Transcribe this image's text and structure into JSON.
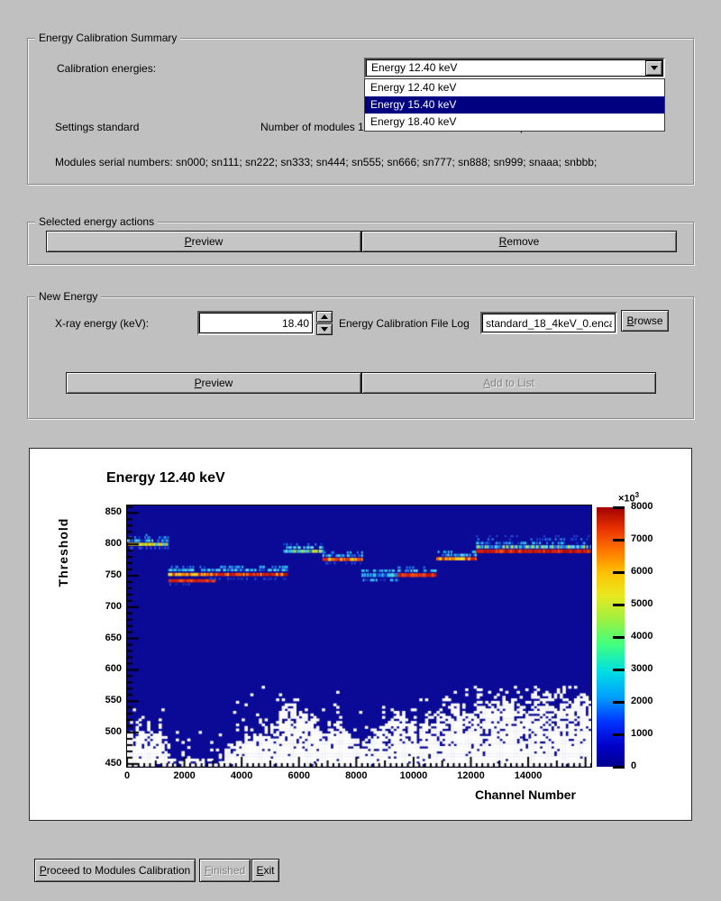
{
  "window": {
    "background": "#c0c0c0"
  },
  "summary_group": {
    "title": "Energy Calibration Summary",
    "calibration_energies_label": "Calibration energies:",
    "combo": {
      "value": "Energy 12.40 keV"
    },
    "dropdown": {
      "items": [
        {
          "label": "Energy 12.40 keV",
          "selected": false
        },
        {
          "label": "Energy 15.40 keV",
          "selected": true
        },
        {
          "label": "Energy 18.40 keV",
          "selected": false
        }
      ],
      "selected_bg": "#000080"
    },
    "settings_label": "Settings standard",
    "modules_label": "Number of modules 12",
    "channels_label": "Channels per module 1280",
    "serials_label": "Modules serial numbers: sn000; sn111; sn222; sn333; sn444; sn555; sn666; sn777; sn888; sn999; snaaa; snbbb;"
  },
  "actions_group": {
    "title": "Selected energy actions",
    "preview_label": "Preview",
    "remove_label": "Remove"
  },
  "new_energy_group": {
    "title": "New Energy",
    "xray_label": "X-ray energy (keV):",
    "xray_value": "18.40",
    "file_log_label": "Energy Calibration File Log",
    "file_value": "standard_18_4keV_0.encal",
    "browse_label": "Browse",
    "preview_label": "Preview",
    "add_to_list_label": "Add to List"
  },
  "footer": {
    "proceed_label": "Proceed to Modules Calibration",
    "finished_label": "Finished",
    "exit_label": "Exit"
  },
  "chart_data": {
    "type": "heatmap",
    "title": "Energy 12.40 keV",
    "xlabel": "Channel Number",
    "ylabel": "Threshold",
    "x_range": [
      0,
      16200
    ],
    "y_range": [
      445.5,
      862
    ],
    "x_ticks": [
      0,
      2000,
      4000,
      6000,
      8000,
      10000,
      12000,
      14000
    ],
    "y_ticks": [
      450,
      500,
      550,
      600,
      650,
      700,
      750,
      800,
      850
    ],
    "background_color": "#0a0a96",
    "empty_color": "#ffffff",
    "colorbar": {
      "min": 0,
      "max": 8000,
      "ticks": [
        0,
        1000,
        2000,
        3000,
        4000,
        5000,
        6000,
        7000,
        8000
      ],
      "exponent_base": "×10",
      "exponent_power": "3",
      "gradient": [
        [
          0,
          "#00008f"
        ],
        [
          0.08,
          "#0000c8"
        ],
        [
          0.17,
          "#0030ff"
        ],
        [
          0.27,
          "#00a0ff"
        ],
        [
          0.37,
          "#00e0e0"
        ],
        [
          0.47,
          "#40ff80"
        ],
        [
          0.57,
          "#a0f040"
        ],
        [
          0.66,
          "#e8e820"
        ],
        [
          0.75,
          "#ffc000"
        ],
        [
          0.84,
          "#ff7000"
        ],
        [
          0.92,
          "#e83000"
        ],
        [
          1,
          "#a00000"
        ]
      ]
    },
    "bands": [
      {
        "name": "module-band-1",
        "ch": [
          0,
          1430
        ],
        "rows": [
          {
            "thr": 800,
            "h": 5,
            "d": 1,
            "ch": [
              30,
              1400
            ],
            "pal": [
              "#f2e72c",
              "#d8e832",
              "#ffd21f",
              "#a8dd2f",
              "#3fd0ea",
              "#ffb300"
            ]
          },
          {
            "thr": 806,
            "h": 4,
            "d": 0.7,
            "pal": [
              "#35c8f0",
              "#2a7fe8",
              "#6fe3f5",
              "#1243d6"
            ]
          },
          {
            "thr": 811,
            "h": 4,
            "d": 0.35,
            "pal": [
              "#2a7fe8",
              "#35c8f0",
              "#1243d6"
            ]
          },
          {
            "thr": 815,
            "h": 3,
            "d": 0.15,
            "pal": [
              "#2a49d8",
              "#35c8f0"
            ]
          },
          {
            "thr": 794,
            "h": 4,
            "d": 0.5,
            "pal": [
              "#1c2fb5",
              "#2a49d8",
              "#3558e8"
            ]
          }
        ]
      },
      {
        "name": "module-band-2",
        "ch": [
          1430,
          2750
        ],
        "rows": [
          {
            "thr": 752,
            "h": 5,
            "d": 1,
            "pal": [
              "#ffd21f",
              "#ff9900",
              "#f2e72c",
              "#ff6a00",
              "#e8392a"
            ]
          },
          {
            "thr": 742,
            "h": 5,
            "d": 1,
            "ch": [
              1440,
              3050
            ],
            "pal": [
              "#e02412",
              "#c21807",
              "#ff5500",
              "#e8392a"
            ]
          },
          {
            "thr": 759,
            "h": 4,
            "d": 0.7,
            "pal": [
              "#35c8f0",
              "#2a7fe8",
              "#6fe3f5"
            ]
          },
          {
            "thr": 764,
            "h": 4,
            "d": 0.35,
            "pal": [
              "#2a7fe8",
              "#35c8f0",
              "#1243d6"
            ]
          },
          {
            "thr": 736,
            "h": 4,
            "d": 0.3,
            "pal": [
              "#1c2fb5",
              "#2a49d8"
            ]
          }
        ]
      },
      {
        "name": "module-band-3",
        "ch": [
          2750,
          5560
        ],
        "rows": [
          {
            "thr": 752,
            "h": 5,
            "d": 1,
            "pal": [
              "#e02412",
              "#c21807",
              "#ff5500",
              "#ffd21f",
              "#ff8800",
              "#d81e0e"
            ]
          },
          {
            "thr": 759,
            "h": 4,
            "d": 0.75,
            "pal": [
              "#35c8f0",
              "#2a7fe8",
              "#6fe3f5",
              "#1243d6"
            ]
          },
          {
            "thr": 764,
            "h": 4,
            "d": 0.35,
            "pal": [
              "#2a7fe8",
              "#35c8f0"
            ]
          },
          {
            "thr": 745,
            "h": 4,
            "d": 0.25,
            "pal": [
              "#1c2fb5",
              "#2a49d8"
            ]
          }
        ]
      },
      {
        "name": "module-band-4",
        "ch": [
          5450,
          6820
        ],
        "rows": [
          {
            "thr": 789,
            "h": 5,
            "d": 1,
            "pal": [
              "#3fd0ea",
              "#35c8f0",
              "#a8dd2f",
              "#f2e72c",
              "#2a7fe8",
              "#6fe3f5"
            ]
          },
          {
            "thr": 795,
            "h": 4,
            "d": 0.6,
            "pal": [
              "#35c8f0",
              "#2a7fe8",
              "#6fe3f5"
            ]
          },
          {
            "thr": 800,
            "h": 4,
            "d": 0.25,
            "pal": [
              "#2a7fe8",
              "#1243d6"
            ]
          }
        ]
      },
      {
        "name": "module-band-5",
        "ch": [
          6820,
          8180
        ],
        "rows": [
          {
            "thr": 776,
            "h": 5,
            "d": 1,
            "pal": [
              "#ff6a00",
              "#e8392a",
              "#e02412",
              "#ffd21f",
              "#ff9900"
            ]
          },
          {
            "thr": 782,
            "h": 4,
            "d": 0.7,
            "pal": [
              "#35c8f0",
              "#2a7fe8",
              "#6fe3f5",
              "#1243d6"
            ]
          },
          {
            "thr": 787,
            "h": 4,
            "d": 0.3,
            "pal": [
              "#2a7fe8",
              "#35c8f0"
            ]
          },
          {
            "thr": 770,
            "h": 4,
            "d": 0.3,
            "pal": [
              "#1c2fb5",
              "#2a49d8"
            ]
          }
        ]
      },
      {
        "name": "module-band-6",
        "ch": [
          8180,
          9440
        ],
        "rows": [
          {
            "thr": 751,
            "h": 6,
            "d": 1,
            "pal": [
              "#2a7fe8",
              "#35c8f0",
              "#1243d6",
              "#6fe3f5",
              "#3fd0ea"
            ]
          },
          {
            "thr": 758,
            "h": 4,
            "d": 0.55,
            "pal": [
              "#35c8f0",
              "#2a7fe8"
            ]
          },
          {
            "thr": 743,
            "h": 4,
            "d": 0.6,
            "pal": [
              "#1c2fb5",
              "#2a49d8",
              "#35c8f0"
            ]
          }
        ]
      },
      {
        "name": "module-band-7",
        "ch": [
          9440,
          10790
        ],
        "rows": [
          {
            "thr": 751,
            "h": 6,
            "d": 1,
            "pal": [
              "#e02412",
              "#c21807",
              "#d81e0e",
              "#ff5500",
              "#e8392a"
            ]
          },
          {
            "thr": 758,
            "h": 4,
            "d": 0.65,
            "pal": [
              "#35c8f0",
              "#2a7fe8",
              "#6fe3f5"
            ]
          },
          {
            "thr": 763,
            "h": 4,
            "d": 0.3,
            "pal": [
              "#2a7fe8",
              "#1243d6"
            ]
          }
        ]
      },
      {
        "name": "module-band-8",
        "ch": [
          10790,
          12180
        ],
        "rows": [
          {
            "thr": 777,
            "h": 5,
            "d": 1,
            "pal": [
              "#ffd21f",
              "#ff9900",
              "#f2e72c",
              "#ff6a00",
              "#e8392a",
              "#e02412"
            ]
          },
          {
            "thr": 783,
            "h": 4,
            "d": 0.65,
            "pal": [
              "#35c8f0",
              "#2a7fe8",
              "#6fe3f5"
            ]
          },
          {
            "thr": 788,
            "h": 4,
            "d": 0.3,
            "pal": [
              "#2a7fe8",
              "#35c8f0"
            ]
          }
        ]
      },
      {
        "name": "module-band-9",
        "ch": [
          12180,
          16200
        ],
        "rows": [
          {
            "thr": 789,
            "h": 6,
            "d": 1,
            "pal": [
              "#c21807",
              "#d81e0e",
              "#a81104",
              "#e02412",
              "#ff5500"
            ]
          },
          {
            "thr": 796,
            "h": 5,
            "d": 0.95,
            "pal": [
              "#35c8f0",
              "#2a7fe8",
              "#1243d6",
              "#6fe3f5",
              "#f2e72c",
              "#3fd0ea"
            ]
          },
          {
            "thr": 802,
            "h": 4,
            "d": 0.5,
            "pal": [
              "#2a7fe8",
              "#35c8f0",
              "#1243d6"
            ]
          },
          {
            "thr": 808,
            "h": 4,
            "d": 0.25,
            "pal": [
              "#2a7fe8",
              "#1243d6"
            ]
          },
          {
            "thr": 813,
            "h": 3,
            "d": 0.12,
            "pal": [
              "#2a49d8"
            ]
          }
        ]
      }
    ],
    "noise": {
      "boundary": [
        [
          0,
          505
        ],
        [
          1290,
          505
        ],
        [
          1310,
          452
        ],
        [
          2900,
          456
        ],
        [
          4000,
          490
        ],
        [
          5000,
          506
        ],
        [
          5600,
          545
        ],
        [
          6200,
          538
        ],
        [
          6800,
          505
        ],
        [
          7400,
          516
        ],
        [
          8000,
          482
        ],
        [
          8600,
          500
        ],
        [
          9000,
          516
        ],
        [
          9600,
          530
        ],
        [
          10200,
          506
        ],
        [
          10800,
          526
        ],
        [
          11400,
          540
        ],
        [
          12200,
          530
        ],
        [
          13000,
          550
        ],
        [
          13600,
          540
        ],
        [
          14300,
          556
        ],
        [
          15200,
          542
        ],
        [
          16200,
          556
        ]
      ],
      "jitter": 24,
      "col_step": 100,
      "row_step": 4,
      "top": 572
    }
  }
}
